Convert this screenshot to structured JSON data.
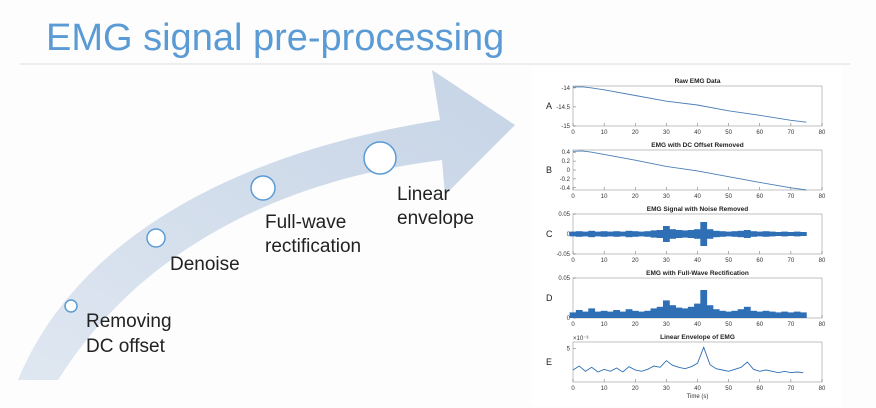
{
  "title": "EMG signal pre-processing",
  "steps": [
    {
      "lines": [
        "Removing",
        "DC offset"
      ]
    },
    {
      "lines": [
        "Denoise"
      ]
    },
    {
      "lines": [
        "Full-wave",
        "rectification"
      ]
    },
    {
      "lines": [
        "Linear",
        "envelope"
      ]
    }
  ],
  "charts": [
    {
      "letter": "A",
      "type": "line",
      "title": "Raw EMG Data",
      "color": "#4a7fb5",
      "x": [
        0,
        3,
        6,
        10,
        20,
        30,
        40,
        50,
        60,
        70,
        75
      ],
      "values": [
        -13.98,
        -13.97,
        -14.0,
        -14.05,
        -14.2,
        -14.35,
        -14.45,
        -14.6,
        -14.72,
        -14.85,
        -14.9
      ],
      "xlim": [
        0,
        80
      ],
      "xticks": [
        0,
        10,
        20,
        30,
        40,
        50,
        60,
        70,
        80
      ],
      "ylim": [
        -15,
        -13.95
      ],
      "yticks": [
        -14,
        -14.5,
        -15
      ]
    },
    {
      "letter": "B",
      "type": "line",
      "title": "EMG with DC Offset Removed",
      "color": "#4a7fb5",
      "x": [
        0,
        3,
        6,
        10,
        20,
        30,
        40,
        50,
        60,
        70,
        75
      ],
      "values": [
        0.42,
        0.43,
        0.4,
        0.35,
        0.22,
        0.08,
        -0.02,
        -0.15,
        -0.28,
        -0.4,
        -0.45
      ],
      "xlim": [
        0,
        80
      ],
      "xticks": [
        0,
        10,
        20,
        30,
        40,
        50,
        60,
        70,
        80
      ],
      "ylim": [
        -0.45,
        0.45
      ],
      "yticks": [
        0.4,
        0.2,
        0,
        -0.2,
        -0.4
      ]
    },
    {
      "letter": "C",
      "type": "band",
      "title": "EMG Signal with Noise Removed",
      "color": "#2f6fb5",
      "x": [
        0,
        2,
        4,
        6,
        8,
        10,
        12,
        14,
        16,
        18,
        20,
        22,
        24,
        26,
        28,
        30,
        32,
        34,
        36,
        38,
        40,
        42,
        44,
        46,
        48,
        50,
        52,
        54,
        56,
        58,
        60,
        62,
        64,
        66,
        68,
        70,
        72,
        74
      ],
      "values": [
        0.006,
        0.007,
        0.006,
        0.008,
        0.006,
        0.007,
        0.006,
        0.007,
        0.006,
        0.008,
        0.007,
        0.006,
        0.007,
        0.009,
        0.01,
        0.02,
        0.012,
        0.01,
        0.009,
        0.01,
        0.012,
        0.03,
        0.012,
        0.008,
        0.007,
        0.006,
        0.007,
        0.008,
        0.01,
        0.007,
        0.006,
        0.007,
        0.006,
        0.005,
        0.006,
        0.005,
        0.006,
        0.005
      ],
      "xlim": [
        0,
        80
      ],
      "xticks": [
        0,
        10,
        20,
        30,
        40,
        50,
        60,
        70,
        80
      ],
      "ylim": [
        -0.05,
        0.05
      ],
      "yticks": [
        0.05,
        0,
        -0.05
      ]
    },
    {
      "letter": "D",
      "type": "spikes",
      "title": "EMG with Full-Wave Rectification",
      "color": "#2f6fb5",
      "x": [
        0,
        2,
        4,
        6,
        8,
        10,
        12,
        14,
        16,
        18,
        20,
        22,
        24,
        26,
        28,
        30,
        32,
        34,
        36,
        38,
        40,
        42,
        44,
        46,
        48,
        50,
        52,
        54,
        56,
        58,
        60,
        62,
        64,
        66,
        68,
        70,
        72,
        74
      ],
      "values": [
        0.007,
        0.01,
        0.008,
        0.012,
        0.008,
        0.009,
        0.008,
        0.01,
        0.008,
        0.011,
        0.009,
        0.008,
        0.009,
        0.012,
        0.014,
        0.022,
        0.016,
        0.013,
        0.012,
        0.014,
        0.018,
        0.035,
        0.016,
        0.011,
        0.009,
        0.008,
        0.009,
        0.011,
        0.014,
        0.009,
        0.008,
        0.009,
        0.008,
        0.007,
        0.008,
        0.007,
        0.008,
        0.007
      ],
      "xlim": [
        0,
        80
      ],
      "xticks": [
        0,
        10,
        20,
        30,
        40,
        50,
        60,
        70,
        80
      ],
      "ylim": [
        0,
        0.05
      ],
      "yticks": [
        0.05,
        0
      ]
    },
    {
      "letter": "E",
      "type": "line",
      "title": "Linear Envelope of EMG",
      "color": "#2f6fb5",
      "exponent_label": "×10⁻³",
      "xlabel": "Time (s)",
      "x": [
        0,
        2,
        4,
        6,
        8,
        10,
        12,
        14,
        16,
        18,
        20,
        22,
        24,
        26,
        28,
        30,
        32,
        34,
        36,
        38,
        40,
        42,
        44,
        46,
        48,
        50,
        52,
        54,
        56,
        58,
        60,
        62,
        64,
        66,
        68,
        70,
        72,
        74
      ],
      "values": [
        1.8,
        2.4,
        1.6,
        2.2,
        1.5,
        1.9,
        1.6,
        2.1,
        1.5,
        2.3,
        1.8,
        1.6,
        1.9,
        2.4,
        2.2,
        3.2,
        2.5,
        2.2,
        2.0,
        2.3,
        2.8,
        5.2,
        2.6,
        2.0,
        1.8,
        1.6,
        1.9,
        2.2,
        3.0,
        1.9,
        1.6,
        1.8,
        1.6,
        1.4,
        1.6,
        1.4,
        1.5,
        1.4
      ],
      "xlim": [
        0,
        80
      ],
      "xticks": [
        0,
        10,
        20,
        30,
        40,
        50,
        60,
        70,
        80
      ],
      "ylim": [
        0,
        6
      ],
      "yticks": [
        5
      ]
    }
  ]
}
